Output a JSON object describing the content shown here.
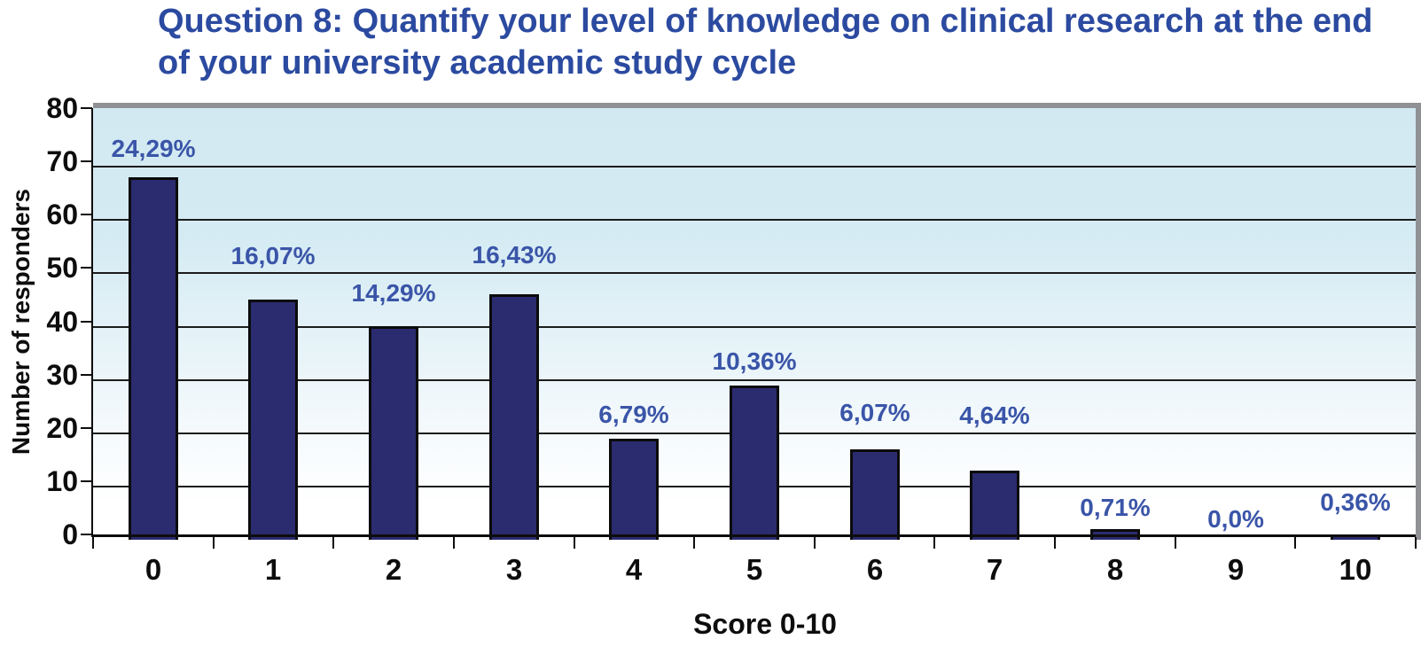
{
  "title": "Question 8: Quantify your level of knowledge on clinical research at the end of your university academic study cycle",
  "chart_data": {
    "type": "bar",
    "title": "Question 8: Quantify your level of knowledge on clinical research at the end of your university academic study cycle",
    "xlabel": "Score 0-10",
    "ylabel": "Number of responders",
    "categories": [
      "0",
      "1",
      "2",
      "3",
      "4",
      "5",
      "6",
      "7",
      "8",
      "9",
      "10"
    ],
    "values": [
      68,
      45,
      40,
      46,
      19,
      29,
      17,
      13,
      2,
      0,
      1
    ],
    "data_labels": [
      "24,29%",
      "16,07%",
      "14,29%",
      "16,43%",
      "6,79%",
      "10,36%",
      "6,07%",
      "4,64%",
      "0,71%",
      "0,0%",
      "0,36%"
    ],
    "ylim": [
      0,
      80
    ],
    "yticks": [
      0,
      10,
      20,
      30,
      40,
      50,
      60,
      70,
      80
    ],
    "grid": "horizontal",
    "legend": "none",
    "label_offset_units": [
      5.4,
      8.2,
      6.3,
      7.4,
      4.5,
      4.4,
      6.8,
      10.3,
      4,
      3.8,
      6
    ],
    "colors": {
      "bar_fill": "#2b2b70",
      "bar_border": "#0b0b0b",
      "data_label": "#3a55a8",
      "title": "#2b4aa0",
      "axis_text": "#0d0d0d",
      "gridline": "#1c1c1c",
      "plot_bg_top": "#d2e9f2",
      "plot_bg_bottom": "#ffffff",
      "frame_gray": "#8f9194"
    }
  }
}
